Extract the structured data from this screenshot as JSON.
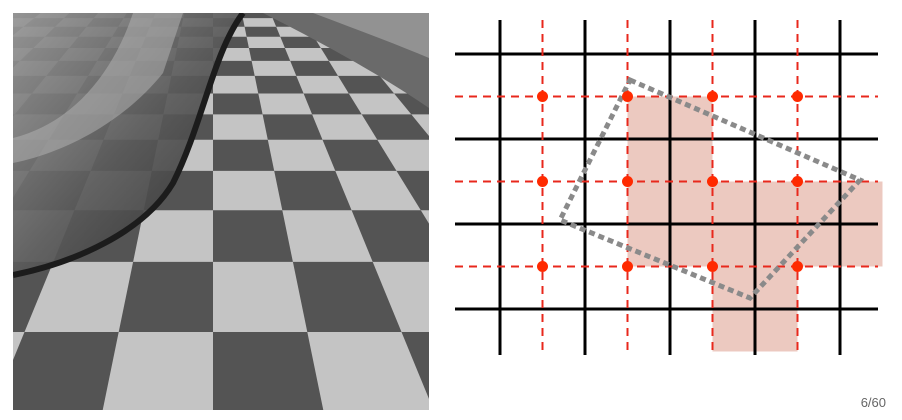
{
  "slide": {
    "page_number": "6/60"
  },
  "photo": {
    "subject": "aliased-checkerboard-floor-with-reflective-sphere",
    "colors": {
      "light_tile": "#c4c4c4",
      "dark_tile": "#545454",
      "sphere_dark": "#3e3e3e"
    }
  },
  "diagram": {
    "pixel_columns": 4,
    "pixel_rows": 3,
    "covered_pixels": [
      [
        1,
        0
      ],
      [
        1,
        1
      ],
      [
        2,
        1
      ],
      [
        3,
        1
      ],
      [
        2,
        2
      ]
    ],
    "sample_points": [
      [
        0,
        0
      ],
      [
        1,
        0
      ],
      [
        2,
        0
      ],
      [
        3,
        0
      ],
      [
        0,
        1
      ],
      [
        1,
        1
      ],
      [
        2,
        1
      ],
      [
        3,
        1
      ],
      [
        0,
        2
      ],
      [
        1,
        2
      ],
      [
        2,
        2
      ],
      [
        3,
        2
      ]
    ],
    "colors": {
      "pixel_grid": "#000000",
      "sample_grid": "#e8281c",
      "sample_point": "#ff2a00",
      "covered_fill": "#ecc9c0",
      "triangle_outline": "#8a8a8a"
    }
  }
}
